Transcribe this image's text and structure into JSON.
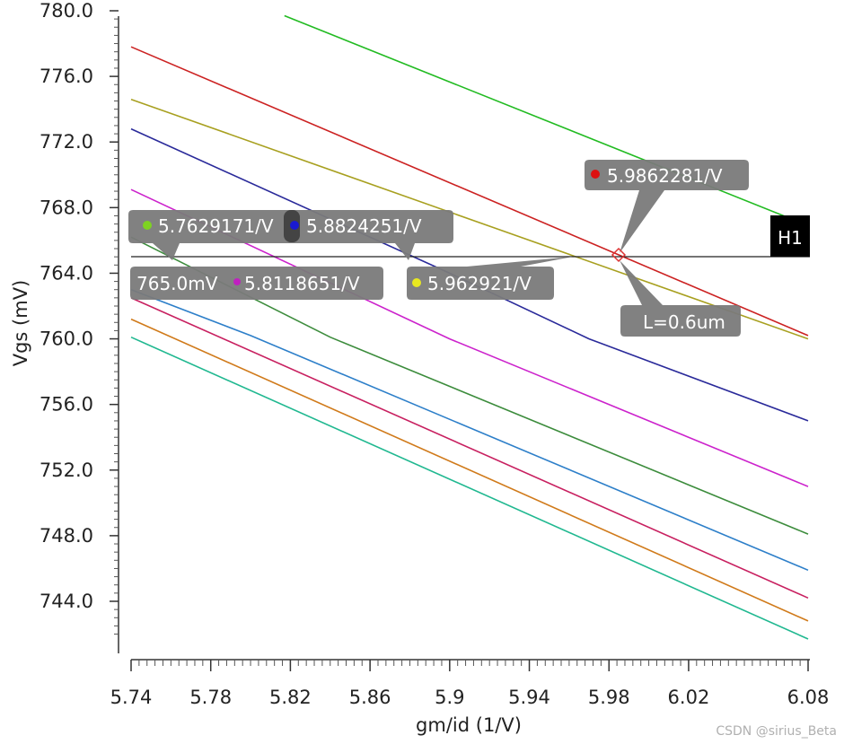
{
  "chart_data": {
    "type": "line",
    "xlabel": "gm/id (1/V)",
    "ylabel": "Vgs (mV)",
    "xlim": [
      5.74,
      6.08
    ],
    "ylim": [
      741.5,
      780.0
    ],
    "x_ticks": [
      5.74,
      5.78,
      5.82,
      5.86,
      5.9,
      5.94,
      5.98,
      6.02,
      6.08
    ],
    "x_tick_labels": [
      "5.74",
      "5.78",
      "5.82",
      "5.86",
      "5.9",
      "5.94",
      "5.98",
      "6.02",
      "6.08"
    ],
    "y_ticks": [
      780,
      776,
      772,
      768,
      764,
      760,
      756,
      752,
      748,
      744
    ],
    "y_tick_labels": [
      "780.0",
      "776.0",
      "772.0",
      "768.0",
      "764.0",
      "760.0",
      "756.0",
      "752.0",
      "748.0",
      "744.0"
    ],
    "series": [
      {
        "name": "green",
        "color": "#22bb22",
        "x": [
          5.817,
          6.08
        ],
        "y": [
          779.7,
          766.9
        ]
      },
      {
        "name": "red",
        "color": "#cc2222",
        "x": [
          5.74,
          6.08
        ],
        "y": [
          777.8,
          760.2
        ]
      },
      {
        "name": "olive",
        "color": "#a8a020",
        "x": [
          5.74,
          6.08
        ],
        "y": [
          774.6,
          760.0
        ]
      },
      {
        "name": "navy",
        "color": "#2a2a9a",
        "x": [
          5.74,
          5.9,
          5.97,
          6.08
        ],
        "y": [
          772.8,
          764.0,
          760.0,
          755.0
        ]
      },
      {
        "name": "magenta",
        "color": "#cc22cc",
        "x": [
          5.74,
          5.9,
          6.08
        ],
        "y": [
          769.1,
          760.0,
          751.0
        ]
      },
      {
        "name": "dark-green",
        "color": "#3c8c3c",
        "x": [
          5.74,
          5.84,
          6.08
        ],
        "y": [
          766.2,
          760.1,
          748.1
        ]
      },
      {
        "name": "blue",
        "color": "#2d7fc9",
        "x": [
          5.74,
          5.8,
          6.08
        ],
        "y": [
          763.0,
          760.2,
          745.9
        ]
      },
      {
        "name": "crimson",
        "color": "#c82060",
        "x": [
          5.74,
          6.08
        ],
        "y": [
          762.5,
          744.2
        ]
      },
      {
        "name": "orange",
        "color": "#d07a1a",
        "x": [
          5.74,
          6.08
        ],
        "y": [
          761.2,
          742.8
        ]
      },
      {
        "name": "teal",
        "color": "#20b890",
        "x": [
          5.74,
          6.08
        ],
        "y": [
          760.1,
          741.7
        ]
      }
    ],
    "hline": {
      "y": 765.0,
      "label": "H1"
    },
    "markers": [
      {
        "x": 5.7629171,
        "y": 765.0,
        "color": "#7ed321",
        "label": "5.7629171/V"
      },
      {
        "x": 5.8824251,
        "y": 765.0,
        "color": "#1a1ad0",
        "label": "5.8824251/V"
      },
      {
        "x": 5.8118651,
        "y": 765.0,
        "color": "#c020c0",
        "label": "5.8118651/V"
      },
      {
        "x": 5.962921,
        "y": 765.0,
        "color": "#e8e820",
        "label": "5.962921/V"
      },
      {
        "x": 5.9862281,
        "y": 765.0,
        "color": "#dd1111",
        "label": "5.9862281/V"
      }
    ],
    "annotations": [
      {
        "text": "765.0mV"
      },
      {
        "text": "L=0.6um"
      }
    ]
  },
  "watermark": "CSDN @sirius_Beta"
}
